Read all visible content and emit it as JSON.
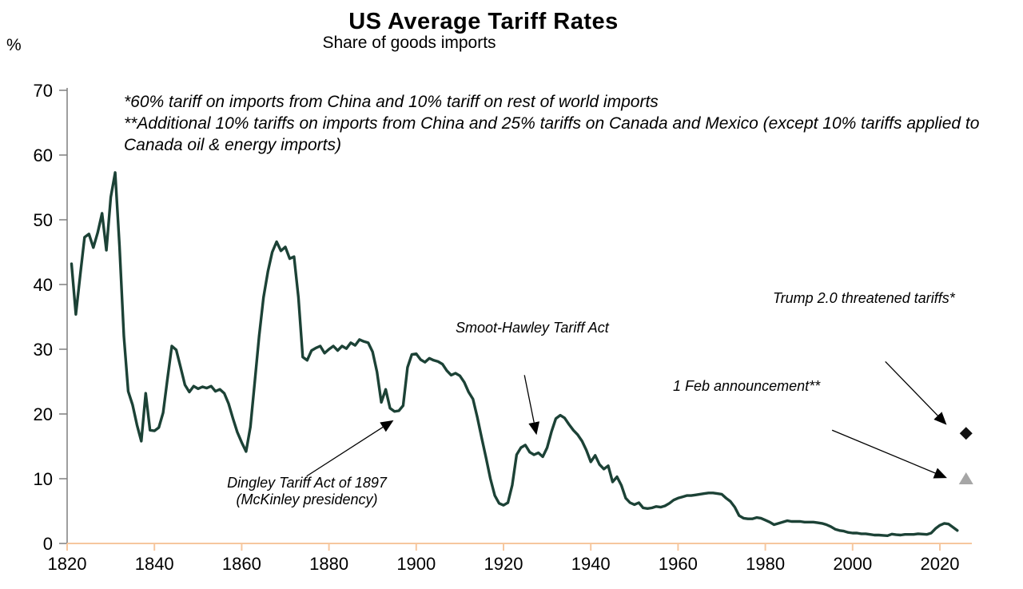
{
  "header": {
    "title": "US Average Tariff Rates",
    "subtitle": "Share of goods imports",
    "unit_label": "%"
  },
  "footnotes": {
    "line1": "*60% tariff on imports from China and 10% tariff on rest of world imports",
    "line2": "**Additional 10% tariffs on imports from China and 25% tariffs on Canada and Mexico (except 10% tariffs applied to Canada oil & energy imports)"
  },
  "chart_data": {
    "type": "line",
    "title": "US Average Tariff Rates",
    "subtitle": "Share of goods imports",
    "ylabel": "%",
    "xlabel": "",
    "grid": false,
    "xlim": [
      1818,
      2030
    ],
    "ylim": [
      0,
      70
    ],
    "x_ticks": [
      1820,
      1840,
      1860,
      1880,
      1900,
      1920,
      1940,
      1960,
      1980,
      2000,
      2020
    ],
    "y_ticks": [
      0,
      10,
      20,
      30,
      40,
      50,
      60,
      70
    ],
    "colors": {
      "line": "#1c4236",
      "x_axis": "#f6c79e",
      "y_axis": "#7f7f7f",
      "text": "#000000",
      "marker_diamond": "#111111",
      "marker_triangle": "#a6a6a6"
    },
    "series": [
      {
        "name": "US average tariff rate, share of goods imports (%)",
        "points": [
          [
            1821,
            43.2
          ],
          [
            1822,
            35.4
          ],
          [
            1823,
            41.5
          ],
          [
            1824,
            47.3
          ],
          [
            1825,
            47.8
          ],
          [
            1826,
            45.7
          ],
          [
            1827,
            48.0
          ],
          [
            1828,
            51.0
          ],
          [
            1829,
            45.3
          ],
          [
            1830,
            53.5
          ],
          [
            1831,
            57.3
          ],
          [
            1832,
            46.0
          ],
          [
            1833,
            32.0
          ],
          [
            1834,
            23.5
          ],
          [
            1835,
            21.4
          ],
          [
            1836,
            18.3
          ],
          [
            1837,
            15.8
          ],
          [
            1838,
            23.2
          ],
          [
            1839,
            17.5
          ],
          [
            1840,
            17.4
          ],
          [
            1841,
            17.9
          ],
          [
            1842,
            20.2
          ],
          [
            1843,
            25.5
          ],
          [
            1844,
            30.5
          ],
          [
            1845,
            29.9
          ],
          [
            1846,
            27.2
          ],
          [
            1847,
            24.5
          ],
          [
            1848,
            23.4
          ],
          [
            1849,
            24.3
          ],
          [
            1850,
            23.9
          ],
          [
            1851,
            24.2
          ],
          [
            1852,
            24.0
          ],
          [
            1853,
            24.3
          ],
          [
            1854,
            23.5
          ],
          [
            1855,
            23.8
          ],
          [
            1856,
            23.2
          ],
          [
            1857,
            21.6
          ],
          [
            1858,
            19.3
          ],
          [
            1859,
            17.2
          ],
          [
            1860,
            15.6
          ],
          [
            1861,
            14.2
          ],
          [
            1862,
            18.0
          ],
          [
            1863,
            25.0
          ],
          [
            1864,
            32.0
          ],
          [
            1865,
            38.0
          ],
          [
            1866,
            42.0
          ],
          [
            1867,
            45.0
          ],
          [
            1868,
            46.6
          ],
          [
            1869,
            45.2
          ],
          [
            1870,
            45.8
          ],
          [
            1871,
            44.0
          ],
          [
            1872,
            44.3
          ],
          [
            1873,
            38.0
          ],
          [
            1874,
            28.8
          ],
          [
            1875,
            28.3
          ],
          [
            1876,
            29.8
          ],
          [
            1877,
            30.2
          ],
          [
            1878,
            30.5
          ],
          [
            1879,
            29.4
          ],
          [
            1880,
            30.0
          ],
          [
            1881,
            30.5
          ],
          [
            1882,
            29.8
          ],
          [
            1883,
            30.5
          ],
          [
            1884,
            30.1
          ],
          [
            1885,
            31.0
          ],
          [
            1886,
            30.6
          ],
          [
            1887,
            31.5
          ],
          [
            1888,
            31.2
          ],
          [
            1889,
            31.0
          ],
          [
            1890,
            29.6
          ],
          [
            1891,
            26.5
          ],
          [
            1892,
            21.8
          ],
          [
            1893,
            23.8
          ],
          [
            1894,
            20.9
          ],
          [
            1895,
            20.4
          ],
          [
            1896,
            20.5
          ],
          [
            1897,
            21.3
          ],
          [
            1898,
            27.2
          ],
          [
            1899,
            29.2
          ],
          [
            1900,
            29.3
          ],
          [
            1901,
            28.4
          ],
          [
            1902,
            28.0
          ],
          [
            1903,
            28.6
          ],
          [
            1904,
            28.3
          ],
          [
            1905,
            28.1
          ],
          [
            1906,
            27.7
          ],
          [
            1907,
            26.7
          ],
          [
            1908,
            26.0
          ],
          [
            1909,
            26.3
          ],
          [
            1910,
            25.9
          ],
          [
            1911,
            24.9
          ],
          [
            1912,
            23.4
          ],
          [
            1913,
            22.3
          ],
          [
            1914,
            19.5
          ],
          [
            1915,
            16.3
          ],
          [
            1916,
            13.2
          ],
          [
            1917,
            10.0
          ],
          [
            1918,
            7.4
          ],
          [
            1919,
            6.2
          ],
          [
            1920,
            5.9
          ],
          [
            1921,
            6.3
          ],
          [
            1922,
            9.0
          ],
          [
            1923,
            13.7
          ],
          [
            1924,
            14.8
          ],
          [
            1925,
            15.2
          ],
          [
            1926,
            14.1
          ],
          [
            1927,
            13.7
          ],
          [
            1928,
            14.0
          ],
          [
            1929,
            13.4
          ],
          [
            1930,
            14.8
          ],
          [
            1931,
            17.3
          ],
          [
            1932,
            19.3
          ],
          [
            1933,
            19.8
          ],
          [
            1934,
            19.4
          ],
          [
            1935,
            18.4
          ],
          [
            1936,
            17.5
          ],
          [
            1937,
            16.8
          ],
          [
            1938,
            15.8
          ],
          [
            1939,
            14.4
          ],
          [
            1940,
            12.6
          ],
          [
            1941,
            13.6
          ],
          [
            1942,
            12.2
          ],
          [
            1943,
            11.5
          ],
          [
            1944,
            12.0
          ],
          [
            1945,
            9.5
          ],
          [
            1946,
            10.3
          ],
          [
            1947,
            9.0
          ],
          [
            1948,
            7.0
          ],
          [
            1949,
            6.3
          ],
          [
            1950,
            6.0
          ],
          [
            1951,
            6.3
          ],
          [
            1952,
            5.5
          ],
          [
            1953,
            5.4
          ],
          [
            1954,
            5.5
          ],
          [
            1955,
            5.7
          ],
          [
            1956,
            5.6
          ],
          [
            1957,
            5.8
          ],
          [
            1958,
            6.2
          ],
          [
            1959,
            6.7
          ],
          [
            1960,
            7.0
          ],
          [
            1961,
            7.2
          ],
          [
            1962,
            7.4
          ],
          [
            1963,
            7.4
          ],
          [
            1964,
            7.5
          ],
          [
            1965,
            7.6
          ],
          [
            1966,
            7.7
          ],
          [
            1967,
            7.8
          ],
          [
            1968,
            7.8
          ],
          [
            1969,
            7.7
          ],
          [
            1970,
            7.6
          ],
          [
            1971,
            7.0
          ],
          [
            1972,
            6.5
          ],
          [
            1973,
            5.6
          ],
          [
            1974,
            4.3
          ],
          [
            1975,
            3.9
          ],
          [
            1976,
            3.8
          ],
          [
            1977,
            3.8
          ],
          [
            1978,
            4.0
          ],
          [
            1979,
            3.9
          ],
          [
            1980,
            3.6
          ],
          [
            1981,
            3.3
          ],
          [
            1982,
            2.9
          ],
          [
            1983,
            3.1
          ],
          [
            1984,
            3.3
          ],
          [
            1985,
            3.5
          ],
          [
            1986,
            3.4
          ],
          [
            1987,
            3.4
          ],
          [
            1988,
            3.4
          ],
          [
            1989,
            3.3
          ],
          [
            1990,
            3.3
          ],
          [
            1991,
            3.3
          ],
          [
            1992,
            3.2
          ],
          [
            1993,
            3.1
          ],
          [
            1994,
            2.9
          ],
          [
            1995,
            2.6
          ],
          [
            1996,
            2.2
          ],
          [
            1997,
            2.0
          ],
          [
            1998,
            1.9
          ],
          [
            1999,
            1.7
          ],
          [
            2000,
            1.6
          ],
          [
            2001,
            1.6
          ],
          [
            2002,
            1.5
          ],
          [
            2003,
            1.5
          ],
          [
            2004,
            1.4
          ],
          [
            2005,
            1.3
          ],
          [
            2006,
            1.3
          ],
          [
            2007,
            1.25
          ],
          [
            2008,
            1.2
          ],
          [
            2009,
            1.45
          ],
          [
            2010,
            1.35
          ],
          [
            2011,
            1.3
          ],
          [
            2012,
            1.4
          ],
          [
            2013,
            1.4
          ],
          [
            2014,
            1.4
          ],
          [
            2015,
            1.5
          ],
          [
            2016,
            1.45
          ],
          [
            2017,
            1.4
          ],
          [
            2018,
            1.6
          ],
          [
            2019,
            2.3
          ],
          [
            2020,
            2.8
          ],
          [
            2021,
            3.1
          ],
          [
            2022,
            3.0
          ],
          [
            2023,
            2.5
          ],
          [
            2024,
            2.0
          ]
        ]
      }
    ],
    "markers": [
      {
        "label": "Trump 2.0 threatened tariffs*",
        "year": 2026,
        "value": 17,
        "shape": "diamond",
        "color": "#111111"
      },
      {
        "label": "1 Feb announcement**",
        "year": 2026,
        "value": 10,
        "shape": "triangle",
        "color": "#a6a6a6"
      }
    ],
    "annotations": [
      {
        "id": "smoot-hawley",
        "label": "Smoot-Hawley Tariff Act",
        "arrow_from": [
          1924.8,
          26.0
        ],
        "arrow_to": [
          1927.5,
          17.0
        ]
      },
      {
        "id": "dingley",
        "label": "Dingley Tariff Act of 1897",
        "label2": "(McKinley presidency)",
        "arrow_from": [
          1874.9,
          10.4
        ],
        "arrow_to": [
          1894.5,
          18.9
        ]
      },
      {
        "id": "trump-2-0",
        "label": "Trump 2.0 threatened tariffs*",
        "arrow_from": [
          2007.5,
          28.1
        ],
        "arrow_to": [
          2021.3,
          18.5
        ]
      },
      {
        "id": "feb-announcement",
        "label": "1 Feb announcement**",
        "arrow_from": [
          1995.3,
          17.5
        ],
        "arrow_to": [
          2021.3,
          10.2
        ]
      }
    ]
  }
}
